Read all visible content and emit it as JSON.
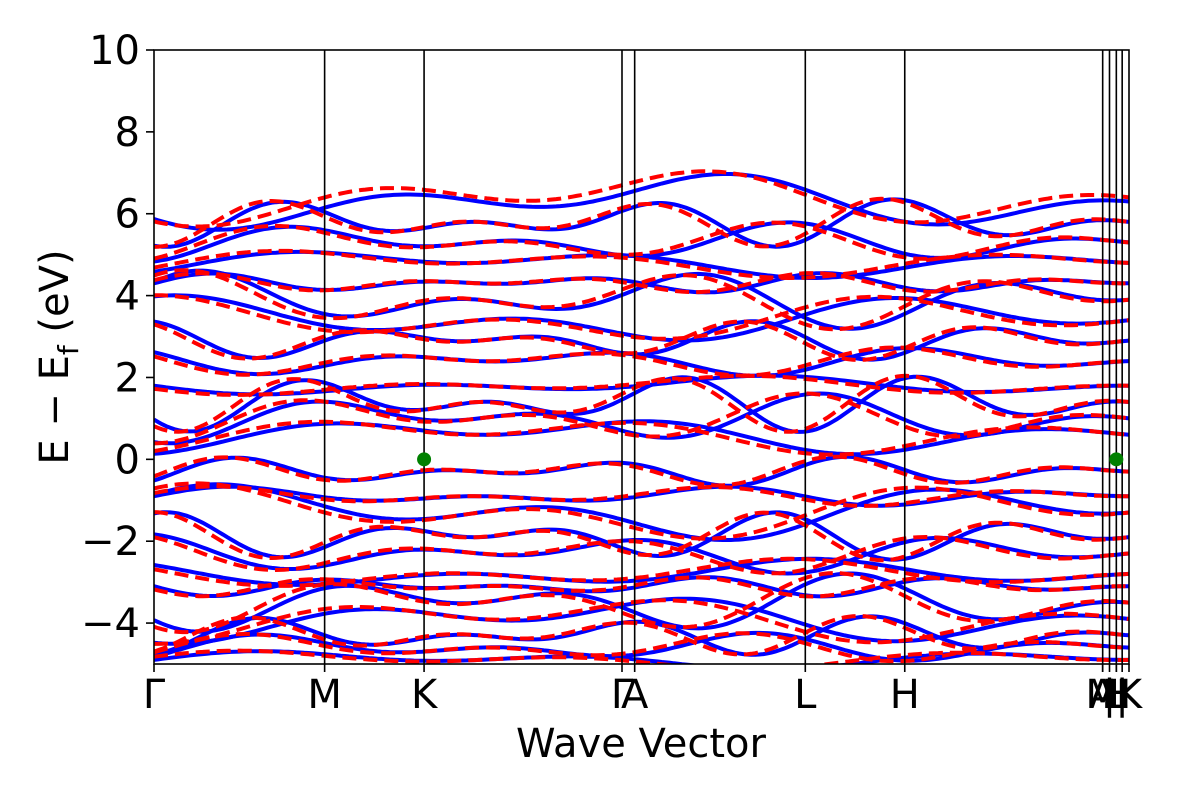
{
  "colors": {
    "blue": "#0000ff",
    "red": "#ff0000",
    "marker": "#008000",
    "axis": "#000000",
    "background": "#ffffff"
  },
  "chart_data": {
    "type": "line",
    "title": "",
    "xlabel": "Wave Vector",
    "ylabel_main": "E − E",
    "ylabel_sub": "f",
    "ylabel_unit": " (eV)",
    "ylim": [
      -5,
      10
    ],
    "yticks": [
      -4,
      -2,
      0,
      2,
      4,
      6,
      8,
      10
    ],
    "ytick_labels": [
      "−4",
      "−2",
      "0",
      "2",
      "4",
      "6",
      "8",
      "10"
    ],
    "xlim": [
      0,
      1
    ],
    "high_symmetry_points": [
      {
        "label": "Γ",
        "x": 0.0
      },
      {
        "label": "M",
        "x": 0.175
      },
      {
        "label": "K",
        "x": 0.277
      },
      {
        "label": "Γ",
        "x": 0.48
      },
      {
        "label": "A",
        "x": 0.493
      },
      {
        "label": "L",
        "x": 0.668
      },
      {
        "label": "H",
        "x": 0.77
      },
      {
        "label": "A",
        "x": 0.973
      },
      {
        "label": "M",
        "x": 0.973
      },
      {
        "label": "|",
        "x": 0.98
      },
      {
        "label": "L",
        "x": 0.987
      },
      {
        "label": "|",
        "x": 0.993
      },
      {
        "label": "H",
        "x": 0.987
      },
      {
        "label": "K",
        "x": 1.0
      }
    ],
    "grid": false,
    "series": [
      {
        "style": "solid",
        "color": "blue",
        "description_levels": [
          -4.9,
          -4.6,
          -4.3,
          -3.9,
          -3.5,
          -3.1,
          -2.8,
          -2.3,
          -1.9,
          -1.3,
          -0.9,
          -0.3,
          0.6,
          1.0,
          1.4,
          1.8,
          2.4,
          2.9,
          3.4,
          3.9,
          4.3,
          4.8,
          5.3,
          5.8,
          6.3
        ]
      },
      {
        "style": "dashed",
        "color": "red",
        "description_levels": [
          -4.9,
          -4.6,
          -4.3,
          -3.9,
          -3.5,
          -3.1,
          -2.8,
          -2.3,
          -1.9,
          -1.3,
          -0.9,
          -0.3,
          0.6,
          1.0,
          1.4,
          1.8,
          2.4,
          2.9,
          3.4,
          3.9,
          4.3,
          4.8,
          5.3,
          5.8,
          6.4
        ]
      }
    ],
    "markers": [
      {
        "x": 0.277,
        "y": 0.0
      },
      {
        "x": 0.987,
        "y": 0.0
      }
    ]
  }
}
